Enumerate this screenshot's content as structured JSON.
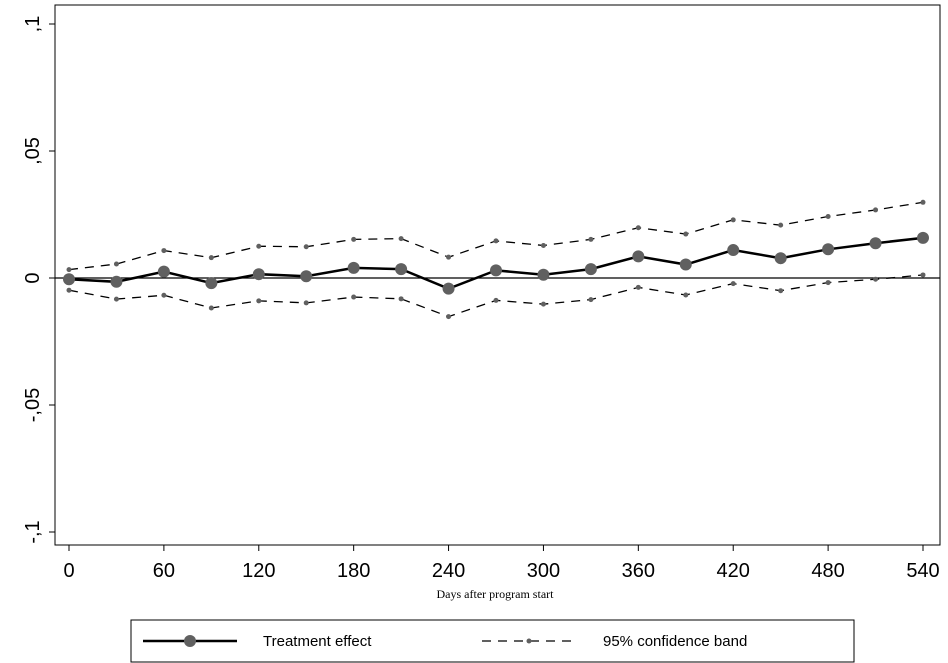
{
  "chart_data": {
    "type": "line",
    "xlabel": "Days after program start",
    "ylabel": "",
    "xlim": [
      0,
      540
    ],
    "ylim": [
      -0.1,
      0.1
    ],
    "xticks": [
      0,
      60,
      120,
      180,
      240,
      300,
      360,
      420,
      480,
      540
    ],
    "xtick_labels": [
      "0",
      "60",
      "120",
      "180",
      "240",
      "300",
      "360",
      "420",
      "480",
      "540"
    ],
    "yticks": [
      -0.1,
      -0.05,
      0,
      0.05,
      0.1
    ],
    "ytick_labels": [
      "-,1",
      "-,05",
      "0",
      ",05",
      ",1"
    ],
    "reference_line_y": 0,
    "grid": false,
    "legend_position": "bottom",
    "x": [
      0,
      30,
      60,
      90,
      120,
      150,
      180,
      210,
      240,
      270,
      300,
      330,
      360,
      390,
      420,
      450,
      480,
      510,
      540
    ],
    "series": [
      {
        "name": "Treatment effect",
        "style": "solid",
        "color": "#000000",
        "marker_color": "#606060",
        "values": [
          -0.0005,
          -0.0015,
          0.0025,
          -0.002,
          0.0015,
          0.0007,
          0.004,
          0.0035,
          -0.0042,
          0.003,
          0.0013,
          0.0035,
          0.0085,
          0.0053,
          0.011,
          0.0078,
          0.0113,
          0.0137,
          0.0158
        ]
      },
      {
        "name": "95% confidence band",
        "style": "dashed",
        "color": "#000000",
        "marker_color": "#606060",
        "upper": [
          0.0033,
          0.0055,
          0.0108,
          0.008,
          0.0125,
          0.0123,
          0.0152,
          0.0155,
          0.0082,
          0.0146,
          0.0128,
          0.0152,
          0.0198,
          0.0173,
          0.0229,
          0.0208,
          0.0242,
          0.0268,
          0.0298
        ],
        "lower": [
          -0.0048,
          -0.0083,
          -0.0068,
          -0.0118,
          -0.009,
          -0.0098,
          -0.0075,
          -0.0082,
          -0.0152,
          -0.0088,
          -0.0103,
          -0.0085,
          -0.0037,
          -0.0067,
          -0.0022,
          -0.005,
          -0.0018,
          -0.0005,
          0.0012
        ]
      }
    ]
  }
}
